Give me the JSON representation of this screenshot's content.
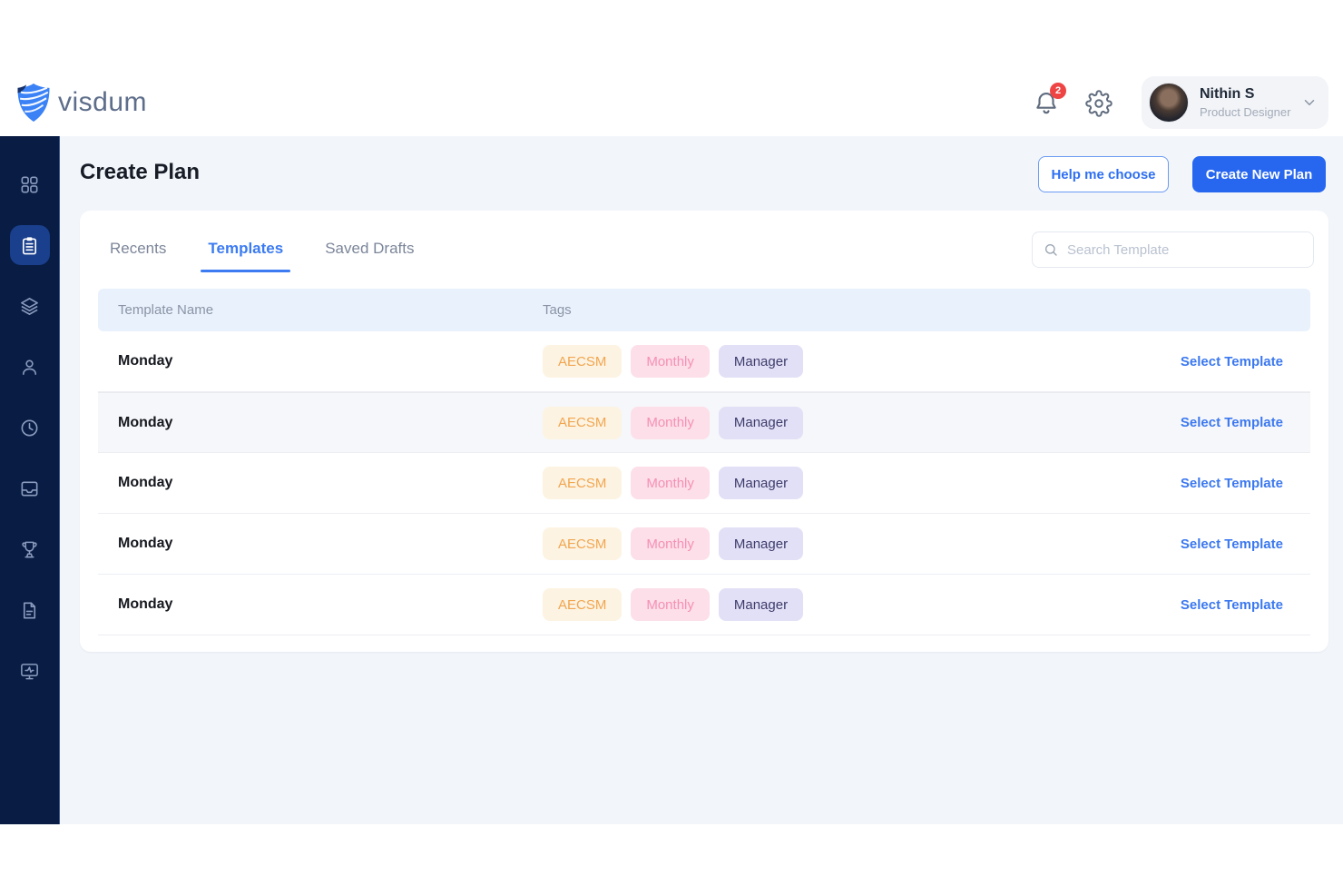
{
  "brand": {
    "name": "visdum"
  },
  "header": {
    "notification_badge": "2",
    "icons": [
      "bell-icon",
      "gear-icon",
      "chevron-down-icon"
    ],
    "user": {
      "name": "Nithin S",
      "role": "Product Designer"
    }
  },
  "sidebar": {
    "items": [
      {
        "icon": "grid-icon",
        "active": false
      },
      {
        "icon": "clipboard-icon",
        "active": true
      },
      {
        "icon": "layers-icon",
        "active": false
      },
      {
        "icon": "user-icon",
        "active": false
      },
      {
        "icon": "clock-icon",
        "active": false
      },
      {
        "icon": "inbox-icon",
        "active": false
      },
      {
        "icon": "trophy-icon",
        "active": false
      },
      {
        "icon": "document-icon",
        "active": false
      },
      {
        "icon": "monitor-icon",
        "active": false
      }
    ]
  },
  "page": {
    "title": "Create Plan",
    "help_button": "Help me choose",
    "create_button": "Create New Plan"
  },
  "tabs": [
    {
      "label": "Recents",
      "active": false
    },
    {
      "label": "Templates",
      "active": true
    },
    {
      "label": "Saved Drafts",
      "active": false
    }
  ],
  "search": {
    "placeholder": "Search Template",
    "icon": "search-icon"
  },
  "table": {
    "columns": [
      "Template Name",
      "Tags"
    ],
    "rows": [
      {
        "name": "Monday",
        "highlighted": false,
        "action": "Select Template",
        "tags": [
          {
            "label": "AECSM",
            "variant": "orange"
          },
          {
            "label": "Monthly",
            "variant": "pink"
          },
          {
            "label": "Manager",
            "variant": "purple"
          }
        ]
      },
      {
        "name": "Monday",
        "highlighted": true,
        "action": "Select Template",
        "tags": [
          {
            "label": "AECSM",
            "variant": "orange"
          },
          {
            "label": "Monthly",
            "variant": "pink"
          },
          {
            "label": "Manager",
            "variant": "purple"
          }
        ]
      },
      {
        "name": "Monday",
        "highlighted": false,
        "action": "Select Template",
        "tags": [
          {
            "label": "AECSM",
            "variant": "orange"
          },
          {
            "label": "Monthly",
            "variant": "pink"
          },
          {
            "label": "Manager",
            "variant": "purple"
          }
        ]
      },
      {
        "name": "Monday",
        "highlighted": false,
        "action": "Select Template",
        "tags": [
          {
            "label": "AECSM",
            "variant": "orange"
          },
          {
            "label": "Monthly",
            "variant": "pink"
          },
          {
            "label": "Manager",
            "variant": "purple"
          }
        ]
      },
      {
        "name": "Monday",
        "highlighted": false,
        "action": "Select Template",
        "tags": [
          {
            "label": "AECSM",
            "variant": "orange"
          },
          {
            "label": "Monthly",
            "variant": "pink"
          },
          {
            "label": "Manager",
            "variant": "purple"
          }
        ]
      }
    ]
  },
  "colors": {
    "accent_blue": "#2f6bf0",
    "sidebar_navy": "#081c44",
    "active_item_blue": "#1a3f8c",
    "main_background": "#f2f6fb",
    "table_header_bg": "#e9f1fc",
    "badge_red": "#ef4444",
    "tag_orange_bg": "#fdf3e2",
    "tag_orange_text": "#f1a650",
    "tag_pink_bg": "#fcdfe9",
    "tag_pink_text": "#f590b4",
    "tag_purple_bg": "#e2e0f6",
    "tag_purple_text": "#3e3c6b"
  }
}
